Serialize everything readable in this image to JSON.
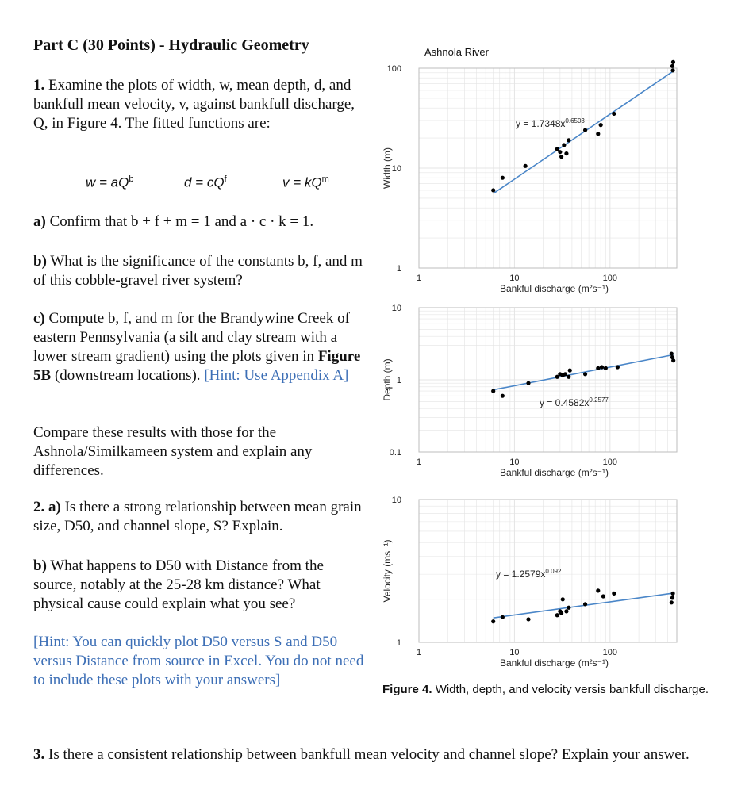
{
  "heading": "Part C (30 Points) - Hydraulic Geometry",
  "q1": {
    "num": "1.",
    "intro": "Examine the plots of width, w, mean depth, d, and bankfull mean velocity, v, against bankfull discharge, Q, in Figure 4. The fitted functions are:",
    "eq_w": "w = aQ",
    "eq_w_exp": "b",
    "eq_d": "d = cQ",
    "eq_d_exp": "f",
    "eq_v": "v = kQ",
    "eq_v_exp": "m",
    "a_label": "a)",
    "a_text": "Confirm that b + f + m = 1 and a · c · k = 1.",
    "b_label": "b)",
    "b_text": "What is the significance of the constants b, f, and m of this cobble-gravel river system?",
    "c_label": "c)",
    "c_text": "Compute b, f, and m for the Brandywine Creek of eastern Pennsylvania (a silt and clay stream with a lower stream gradient) using the plots given in",
    "c_fig": "Figure 5B",
    "c_text2": "(downstream locations).",
    "c_hint": "[Hint: Use Appendix A]",
    "compare": "Compare these results with those for the Ashnola/Similkameen system and explain any differences."
  },
  "q2": {
    "a_label": "2. a)",
    "a_text": "Is there a strong relationship between mean grain size, D50, and channel slope, S? Explain.",
    "b_label": "b)",
    "b_text": "What happens to D50 with Distance from the source, notably at the 25-28 km distance? What physical cause could explain what you see?",
    "hint": "[Hint: You can quickly plot D50 versus S and D50 versus Distance from source in Excel. You do not need to include these plots with your answers]"
  },
  "q3": {
    "label": "3.",
    "text": "Is there a consistent relationship between bankfull mean velocity and channel slope? Explain your answer."
  },
  "figure": {
    "title": "Ashnola River",
    "caption_bold": "Figure 4.",
    "caption_text": "Width, depth, and velocity versis bankfull discharge."
  },
  "colors": {
    "trendline": "#4a86c8",
    "hint": "#3d6fb6",
    "points": "#000000",
    "grid": "#e4e4e4"
  },
  "chart_data": [
    {
      "type": "scatter",
      "title": "Ashnola River",
      "xlabel": "Bankful discharge (m²s⁻¹)",
      "ylabel": "Width (m)",
      "xscale": "log",
      "yscale": "log",
      "xlim": [
        1,
        500
      ],
      "ylim": [
        1,
        100
      ],
      "xticks": [
        "1",
        "10",
        "100"
      ],
      "yticks": [
        "1",
        "10",
        "100"
      ],
      "equation": "y = 1.7348x",
      "equation_exp": "0.6503",
      "fit": {
        "a": 1.7348,
        "b": 0.6503
      },
      "points": [
        [
          6,
          6
        ],
        [
          7.5,
          8
        ],
        [
          13,
          10.5
        ],
        [
          28,
          15.5
        ],
        [
          30,
          14.5
        ],
        [
          31,
          13
        ],
        [
          33,
          17
        ],
        [
          35,
          14
        ],
        [
          37,
          19
        ],
        [
          55,
          24
        ],
        [
          75,
          22
        ],
        [
          80,
          27
        ],
        [
          110,
          35
        ],
        [
          450,
          105
        ],
        [
          455,
          95
        ],
        [
          458,
          115
        ]
      ]
    },
    {
      "type": "scatter",
      "xlabel": "Bankful discharge (m²s⁻¹)",
      "ylabel": "Depth (m)",
      "xscale": "log",
      "yscale": "log",
      "xlim": [
        1,
        500
      ],
      "ylim": [
        0.1,
        10
      ],
      "xticks": [
        "1",
        "10",
        "100"
      ],
      "yticks": [
        "0.1",
        "1",
        "10"
      ],
      "equation": "y = 0.4582x",
      "equation_exp": "0.2577",
      "fit": {
        "a": 0.4582,
        "b": 0.2577
      },
      "points": [
        [
          6,
          0.7
        ],
        [
          7.5,
          0.6
        ],
        [
          14,
          0.9
        ],
        [
          28,
          1.1
        ],
        [
          30,
          1.2
        ],
        [
          32,
          1.15
        ],
        [
          34,
          1.2
        ],
        [
          37,
          1.1
        ],
        [
          38,
          1.35
        ],
        [
          55,
          1.2
        ],
        [
          75,
          1.45
        ],
        [
          82,
          1.5
        ],
        [
          90,
          1.45
        ],
        [
          120,
          1.5
        ],
        [
          440,
          2.3
        ],
        [
          450,
          2.05
        ],
        [
          460,
          1.85
        ]
      ]
    },
    {
      "type": "scatter",
      "xlabel": "Bankful discharge (m²s⁻¹)",
      "ylabel": "Velocity (ms⁻¹)",
      "xscale": "log",
      "yscale": "log",
      "xlim": [
        1,
        500
      ],
      "ylim": [
        1,
        10
      ],
      "xticks": [
        "1",
        "10",
        "100"
      ],
      "yticks": [
        "1",
        "10"
      ],
      "equation": "y = 1.2579x",
      "equation_exp": "0.092",
      "fit": {
        "a": 1.2579,
        "b": 0.092
      },
      "points": [
        [
          6,
          1.4
        ],
        [
          7.5,
          1.5
        ],
        [
          14,
          1.45
        ],
        [
          28,
          1.55
        ],
        [
          30,
          1.65
        ],
        [
          31,
          1.6
        ],
        [
          32,
          2.0
        ],
        [
          35,
          1.65
        ],
        [
          37,
          1.75
        ],
        [
          55,
          1.85
        ],
        [
          75,
          2.3
        ],
        [
          85,
          2.1
        ],
        [
          110,
          2.2
        ],
        [
          440,
          1.9
        ],
        [
          450,
          2.05
        ],
        [
          455,
          2.2
        ]
      ]
    }
  ]
}
